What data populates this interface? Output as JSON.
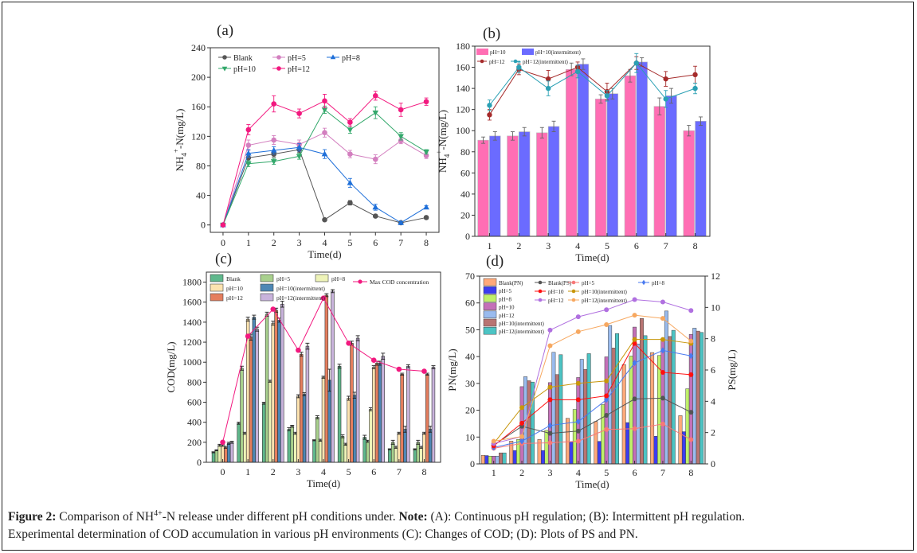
{
  "caption": {
    "figure_label": "Figure 2:",
    "line1_a": "Comparison of NH",
    "line1_sup": "4+",
    "line1_b": "-N release under different pH conditions under.",
    "note_label": "Note:",
    "line1_c": "(A): Continuous pH regulation; (B):  Intermittent pH regulation.",
    "line2": "Experimental determination of COD accumulation in various pH environments (C): Changes of COD; (D): Plots of PS and PN."
  },
  "chart_data": [
    {
      "id": "a",
      "panel_label": "(a)",
      "type": "line",
      "xlabel": "Time(d)",
      "ylabel": "NH4+-N(mg/L)",
      "ylabel_main": "NH",
      "ylabel_sub": "4",
      "ylabel_sup": "+",
      "ylabel_rest": "-N(mg/L)",
      "x": [
        0,
        1,
        2,
        3,
        4,
        5,
        6,
        7,
        8
      ],
      "xlim": [
        -0.5,
        8.5
      ],
      "ylim": [
        -10,
        240
      ],
      "yticks": [
        0,
        40,
        80,
        120,
        160,
        200,
        240
      ],
      "xticks": [
        0,
        1,
        2,
        3,
        4,
        5,
        6,
        7,
        8
      ],
      "legend_position": "top-left",
      "series": [
        {
          "name": "Blank",
          "color": "#555555",
          "marker": "circle",
          "values": [
            0,
            91,
            96,
            102,
            7,
            30,
            12,
            3,
            10
          ],
          "errors": [
            0,
            4,
            4,
            4,
            2,
            3,
            2,
            1,
            2
          ]
        },
        {
          "name": "pH=5",
          "color": "#d37fbf",
          "marker": "circle",
          "values": [
            0,
            108,
            115,
            109,
            125,
            96,
            89,
            114,
            94
          ],
          "errors": [
            0,
            7,
            6,
            6,
            6,
            5,
            6,
            4,
            4
          ]
        },
        {
          "name": "pH=8",
          "color": "#1e6fd9",
          "marker": "triangle-up",
          "values": [
            0,
            97,
            101,
            105,
            96,
            57,
            24,
            3,
            24
          ],
          "errors": [
            0,
            5,
            5,
            5,
            6,
            6,
            4,
            1,
            2
          ]
        },
        {
          "name": "pH=10",
          "color": "#33a86b",
          "marker": "triangle-down",
          "values": [
            0,
            83,
            86,
            93,
            156,
            129,
            152,
            120,
            99
          ],
          "errors": [
            0,
            4,
            4,
            4,
            5,
            5,
            8,
            5,
            3
          ]
        },
        {
          "name": "pH=12",
          "color": "#f2197f",
          "marker": "circle",
          "values": [
            0,
            129,
            164,
            151,
            168,
            139,
            175,
            156,
            167
          ],
          "errors": [
            0,
            7,
            11,
            6,
            9,
            5,
            6,
            9,
            5
          ]
        }
      ]
    },
    {
      "id": "b",
      "panel_label": "(b)",
      "type": "bar",
      "xlabel": "Time(d)",
      "ylabel": "NH4+-N(mg/L)",
      "ylabel_main": "NH",
      "ylabel_sub": "4",
      "ylabel_sup": "+",
      "ylabel_rest": "-N(mg/L)",
      "categories": [
        "1",
        "2",
        "3",
        "4",
        "5",
        "6",
        "7",
        "8"
      ],
      "ylim": [
        0,
        180
      ],
      "yticks": [
        0,
        20,
        40,
        60,
        80,
        100,
        120,
        140,
        160,
        180
      ],
      "legend_position": "top",
      "bar_series": [
        {
          "name": "pH=10",
          "color": "#ff6eb4",
          "values": [
            91,
            95,
            98,
            158,
            130,
            152,
            123,
            100
          ],
          "errors": [
            3,
            4,
            5,
            6,
            4,
            6,
            8,
            5
          ]
        },
        {
          "name": "pH=10(intermittent)",
          "color": "#6b6bff",
          "values": [
            95,
            99,
            104,
            163,
            135,
            165,
            133,
            109
          ],
          "errors": [
            4,
            4,
            5,
            5,
            5,
            4,
            7,
            4
          ]
        }
      ],
      "line_series": [
        {
          "name": "pH=12",
          "color": "#a52a2a",
          "values": [
            115,
            158,
            149,
            160,
            137,
            164,
            149,
            153
          ],
          "errors": [
            5,
            5,
            8,
            5,
            8,
            6,
            7,
            8
          ]
        },
        {
          "name": "pH=12(intermittent)",
          "color": "#2aa0b4",
          "values": [
            124,
            160,
            140,
            156,
            133,
            164,
            130,
            140
          ],
          "errors": [
            5,
            5,
            7,
            6,
            5,
            9,
            8,
            5
          ]
        }
      ]
    },
    {
      "id": "c",
      "panel_label": "(c)",
      "type": "bar",
      "xlabel": "Time(d)",
      "ylabel": "COD(mg/L)",
      "categories": [
        "0",
        "1",
        "2",
        "3",
        "4",
        "5",
        "6",
        "7",
        "8"
      ],
      "ylim": [
        0,
        1900
      ],
      "yticks": [
        0,
        200,
        400,
        600,
        800,
        1000,
        1200,
        1400,
        1600,
        1800
      ],
      "legend_position": "top",
      "bar_series": [
        {
          "name": "Blank",
          "color": "#5fb88c",
          "values": [
            100,
            390,
            590,
            330,
            220,
            960,
            250,
            130,
            130
          ],
          "errors": [
            5,
            10,
            10,
            15,
            5,
            20,
            20,
            5,
            5
          ]
        },
        {
          "name": "pH=5",
          "color": "#a8d08d",
          "values": [
            120,
            940,
            1480,
            360,
            450,
            260,
            210,
            200,
            200
          ],
          "errors": [
            5,
            20,
            20,
            10,
            15,
            15,
            10,
            20,
            20
          ]
        },
        {
          "name": "pH=8",
          "color": "#eef3b8",
          "values": [
            170,
            290,
            810,
            290,
            220,
            180,
            530,
            150,
            150
          ],
          "errors": [
            10,
            10,
            10,
            10,
            10,
            10,
            15,
            10,
            10
          ]
        },
        {
          "name": "pH=10",
          "color": "#fde3b0",
          "values": [
            170,
            1430,
            1390,
            660,
            850,
            640,
            950,
            290,
            290
          ],
          "errors": [
            10,
            20,
            20,
            15,
            10,
            20,
            15,
            10,
            10
          ]
        },
        {
          "name": "pH=12",
          "color": "#e57e5e",
          "values": [
            150,
            1250,
            1520,
            1080,
            1670,
            1190,
            990,
            880,
            880
          ],
          "errors": [
            10,
            30,
            20,
            20,
            15,
            20,
            20,
            10,
            10
          ]
        },
        {
          "name": "pH=10(intermittent)",
          "color": "#4e87b5",
          "values": [
            190,
            1450,
            1420,
            680,
            820,
            670,
            990,
            330,
            330
          ],
          "errors": [
            10,
            20,
            20,
            15,
            110,
            30,
            20,
            30,
            30
          ]
        },
        {
          "name": "pH=12(intermittent)",
          "color": "#c9b3dc",
          "values": [
            200,
            1330,
            1580,
            1160,
            1710,
            1240,
            1060,
            960,
            950
          ],
          "errors": [
            10,
            20,
            30,
            30,
            15,
            25,
            30,
            15,
            15
          ]
        }
      ],
      "line_series": [
        {
          "name": "Max COD concentration",
          "color": "#f2197f",
          "values": [
            200,
            1260,
            1530,
            1120,
            1640,
            1190,
            1020,
            930,
            910
          ]
        }
      ]
    },
    {
      "id": "d",
      "panel_label": "(d)",
      "type": "bar",
      "xlabel": "Time(d)",
      "ylabel": "PN(mg/L)",
      "ylabel_right": "PS(mg/L)",
      "categories": [
        "1",
        "2",
        "3",
        "4",
        "5",
        "6",
        "7",
        "8"
      ],
      "ylim": [
        0,
        70
      ],
      "yticks": [
        0,
        10,
        20,
        30,
        40,
        50,
        60,
        70
      ],
      "ylim_right": [
        0,
        12
      ],
      "yticks_right": [
        0,
        2,
        4,
        6,
        8,
        10,
        12
      ],
      "legend_position": "top",
      "bar_series": [
        {
          "name": "Blank(PN)",
          "color": "#ffa97a",
          "values": [
            3.2,
            8.5,
            9.1,
            17,
            15.8,
            37,
            41.5,
            18
          ]
        },
        {
          "name": "pH=5",
          "color": "#3c3cf0",
          "values": [
            3.1,
            5,
            5,
            8.2,
            8.4,
            15.4,
            10.3,
            12
          ]
        },
        {
          "name": "pH=8",
          "color": "#bff06a",
          "values": [
            2.9,
            9.1,
            12.5,
            20.3,
            22.1,
            40.2,
            40.4,
            28
          ]
        },
        {
          "name": "pH=10",
          "color": "#c470b8",
          "values": [
            2.9,
            28.8,
            30.3,
            32.2,
            39.9,
            51,
            46.1,
            48.3
          ]
        },
        {
          "name": "pH=12",
          "color": "#99bbee",
          "values": [
            2.9,
            32.5,
            41.6,
            39,
            51.6,
            44.7,
            57,
            50.6
          ]
        },
        {
          "name": "pH=10(intermittent)",
          "color": "#b87472",
          "values": [
            4.1,
            31,
            33.3,
            35.2,
            43.2,
            54.2,
            47.5,
            49.5
          ]
        },
        {
          "name": "pH=12(intermittent)",
          "color": "#4cc4c4",
          "values": [
            4.1,
            30.5,
            40.7,
            41.1,
            48.6,
            47.8,
            49.8,
            49
          ]
        }
      ],
      "line_series": [
        {
          "name": "Blank(PS)",
          "color": "#555555",
          "values": [
            1.2,
            2.4,
            1.95,
            2.1,
            3.1,
            4.15,
            4.2,
            3.3
          ]
        },
        {
          "name": "pH=5",
          "color": "#f77878",
          "values": [
            1.0,
            1.3,
            1.35,
            1.45,
            2.2,
            2.25,
            2.55,
            1.55
          ]
        },
        {
          "name": "pH=8",
          "color": "#4a7af0",
          "values": [
            1.05,
            1.45,
            2.45,
            2.7,
            4.1,
            6.45,
            7.25,
            6.9
          ]
        },
        {
          "name": "pH=10",
          "color": "#ff1010",
          "values": [
            1.15,
            2.6,
            4.1,
            4.1,
            4.35,
            7.7,
            5.85,
            5.7
          ]
        },
        {
          "name": "pH=10(intermittent)",
          "color": "#c8960a",
          "values": [
            1.3,
            3.6,
            4.9,
            5.15,
            5.3,
            7.95,
            7.95,
            7.7
          ]
        },
        {
          "name": "pH=12",
          "color": "#b070e0",
          "values": [
            1.3,
            1.75,
            8.55,
            9.4,
            9.85,
            10.5,
            10.35,
            9.8
          ]
        },
        {
          "name": "pH=12(intermittent)",
          "color": "#f7a860",
          "values": [
            1.45,
            1.75,
            7.55,
            8.45,
            8.9,
            9.5,
            9.3,
            7.85
          ]
        }
      ]
    }
  ]
}
